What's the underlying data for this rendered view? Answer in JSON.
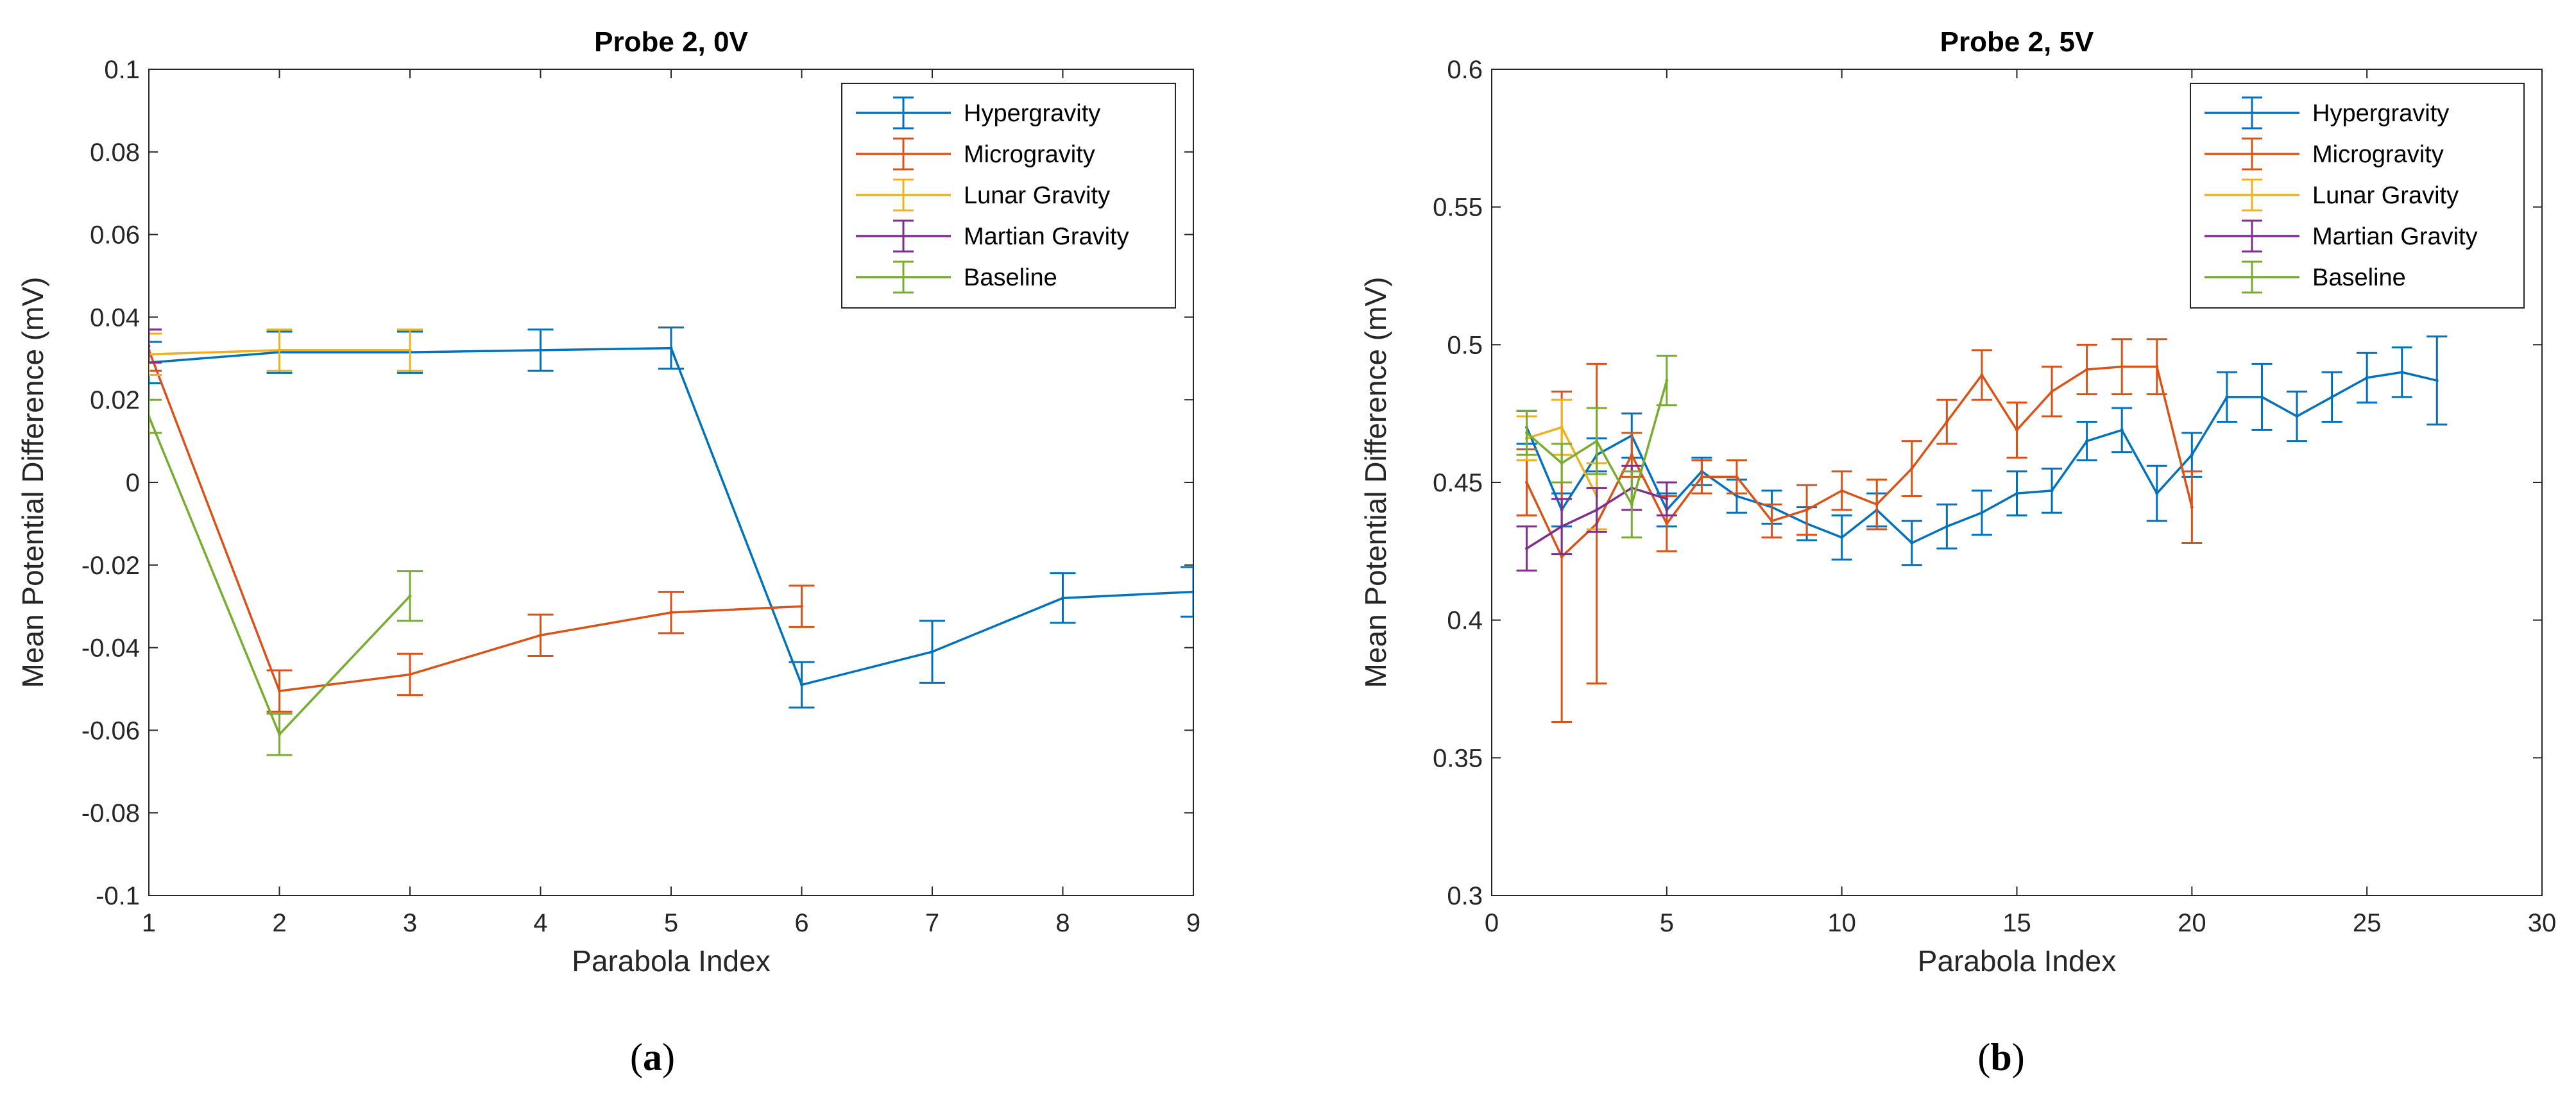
{
  "figure": {
    "panel_labels": [
      {
        "open": "(",
        "letter": "a",
        "close": ")"
      },
      {
        "open": "(",
        "letter": "b",
        "close": ")"
      }
    ]
  },
  "chart_data": [
    {
      "type": "line",
      "title": "Probe 2, 0V",
      "xlabel": "Parabola Index",
      "ylabel": "Mean Potential Difference (mV)",
      "xlim": [
        1,
        9
      ],
      "ylim": [
        -0.1,
        0.1
      ],
      "xticks": [
        "1",
        "2",
        "3",
        "4",
        "5",
        "6",
        "7",
        "8",
        "9"
      ],
      "yticks": [
        "-0.1",
        "-0.08",
        "-0.06",
        "-0.04",
        "-0.02",
        "0",
        "0.02",
        "0.04",
        "0.06",
        "0.08",
        "0.1"
      ],
      "grid": false,
      "error_bars": true,
      "legend_position": "top-right",
      "series": [
        {
          "name": "Hypergravity",
          "color": "#0072BD",
          "x": [
            1,
            2,
            3,
            4,
            5,
            6,
            7,
            8,
            9
          ],
          "y": [
            0.029,
            0.0315,
            0.0315,
            0.032,
            0.0325,
            -0.049,
            -0.041,
            -0.028,
            -0.0265
          ],
          "err": [
            0.005,
            0.005,
            0.005,
            0.005,
            0.005,
            0.0055,
            0.0075,
            0.006,
            0.006
          ]
        },
        {
          "name": "Microgravity",
          "color": "#D95319",
          "x": [
            1,
            2,
            3,
            4,
            5,
            6
          ],
          "y": [
            0.032,
            -0.0505,
            -0.0465,
            -0.037,
            -0.0315,
            -0.03
          ],
          "err": [
            0.005,
            0.005,
            0.005,
            0.005,
            0.005,
            0.005
          ]
        },
        {
          "name": "Lunar Gravity",
          "color": "#EDB120",
          "x": [
            1,
            2,
            3
          ],
          "y": [
            0.031,
            0.032,
            0.032
          ],
          "err": [
            0.005,
            0.005,
            0.005
          ]
        },
        {
          "name": "Martian Gravity",
          "color": "#7E2F8E",
          "x": [
            1
          ],
          "y": [
            0.033
          ],
          "err": [
            0.004
          ]
        },
        {
          "name": "Baseline",
          "color": "#77AC30",
          "x": [
            1,
            2,
            3
          ],
          "y": [
            0.016,
            -0.061,
            -0.0275
          ],
          "err": [
            0.004,
            0.005,
            0.006
          ]
        }
      ]
    },
    {
      "type": "line",
      "title": "Probe 2, 5V",
      "xlabel": "Parabola Index",
      "ylabel": "Mean Potential Difference (mV)",
      "xlim": [
        0,
        30
      ],
      "ylim": [
        0.3,
        0.6
      ],
      "xticks": [
        "0",
        "5",
        "10",
        "15",
        "20",
        "25",
        "30"
      ],
      "yticks": [
        "0.3",
        "0.35",
        "0.4",
        "0.45",
        "0.5",
        "0.55",
        "0.6"
      ],
      "grid": false,
      "error_bars": true,
      "legend_position": "top-right",
      "series": [
        {
          "name": "Hypergravity",
          "color": "#0072BD",
          "x": [
            1,
            2,
            3,
            4,
            5,
            6,
            7,
            8,
            9,
            10,
            11,
            12,
            13,
            14,
            15,
            16,
            17,
            18,
            19,
            20,
            21,
            22,
            23,
            24,
            25,
            26,
            27
          ],
          "y": [
            0.47,
            0.44,
            0.46,
            0.467,
            0.44,
            0.454,
            0.445,
            0.441,
            0.435,
            0.43,
            0.44,
            0.428,
            0.434,
            0.439,
            0.446,
            0.447,
            0.465,
            0.469,
            0.446,
            0.46,
            0.481,
            0.481,
            0.474,
            0.481,
            0.488,
            0.49,
            0.487
          ],
          "err": [
            0.006,
            0.006,
            0.006,
            0.008,
            0.006,
            0.005,
            0.006,
            0.006,
            0.006,
            0.008,
            0.006,
            0.008,
            0.008,
            0.008,
            0.008,
            0.008,
            0.007,
            0.008,
            0.01,
            0.008,
            0.009,
            0.012,
            0.009,
            0.009,
            0.009,
            0.009,
            0.016
          ]
        },
        {
          "name": "Microgravity",
          "color": "#D95319",
          "x": [
            1,
            2,
            3,
            4,
            5,
            6,
            7,
            8,
            9,
            10,
            11,
            12,
            13,
            14,
            15,
            16,
            17,
            18,
            19,
            20
          ],
          "y": [
            0.45,
            0.423,
            0.435,
            0.46,
            0.435,
            0.452,
            0.452,
            0.436,
            0.44,
            0.447,
            0.442,
            0.455,
            0.472,
            0.489,
            0.469,
            0.483,
            0.491,
            0.492,
            0.492,
            0.441
          ],
          "err": [
            0.012,
            0.06,
            0.058,
            0.008,
            0.01,
            0.006,
            0.006,
            0.006,
            0.009,
            0.007,
            0.009,
            0.01,
            0.008,
            0.009,
            0.01,
            0.009,
            0.009,
            0.01,
            0.01,
            0.013
          ]
        },
        {
          "name": "Lunar Gravity",
          "color": "#EDB120",
          "x": [
            1,
            2,
            3
          ],
          "y": [
            0.466,
            0.47,
            0.445
          ],
          "err": [
            0.008,
            0.01,
            0.012
          ]
        },
        {
          "name": "Martian Gravity",
          "color": "#7E2F8E",
          "x": [
            1,
            2,
            3,
            4,
            5
          ],
          "y": [
            0.426,
            0.434,
            0.44,
            0.448,
            0.444
          ],
          "err": [
            0.008,
            0.01,
            0.008,
            0.008,
            0.006
          ]
        },
        {
          "name": "Baseline",
          "color": "#77AC30",
          "x": [
            1,
            2,
            3,
            4,
            5
          ],
          "y": [
            0.468,
            0.457,
            0.465,
            0.442,
            0.487
          ],
          "err": [
            0.008,
            0.007,
            0.012,
            0.012,
            0.009
          ]
        }
      ]
    }
  ]
}
